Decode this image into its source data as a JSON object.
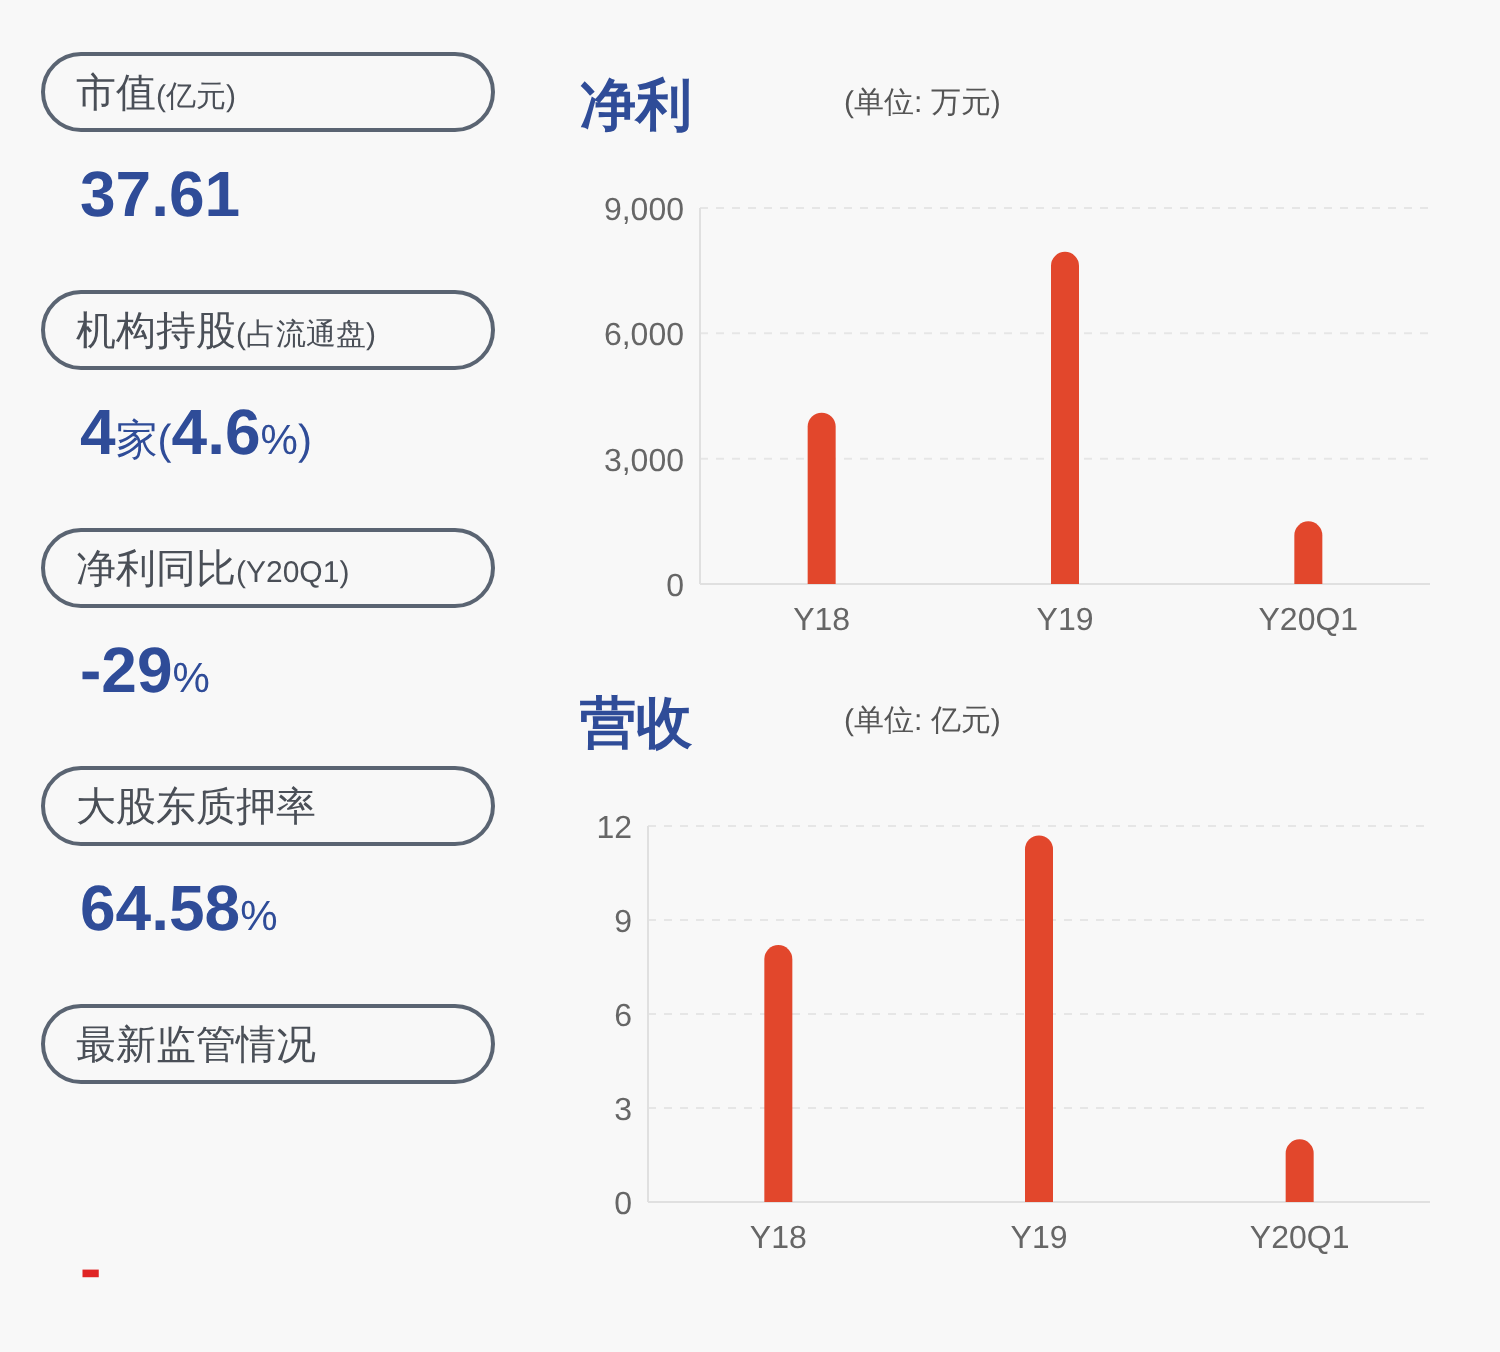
{
  "chart_data": [
    {
      "type": "other",
      "annotations": [
        "市值(亿元)",
        "37.61",
        "机构持股(占流通盘)",
        "4家(4.6%)",
        "净利同比(Y20Q1)",
        "-29%",
        "大股东质押率",
        "64.58%",
        "最新监管情况",
        "-"
      ],
      "colors": [
        "#2f4c98",
        "#2f4c98",
        "#2f4c98",
        "#2f4c98",
        "#e02424"
      ]
    },
    {
      "type": "bar",
      "title": "净利",
      "subtitle": "(单位: 万元)",
      "categories": [
        "Y18",
        "Y19",
        "Y20Q1"
      ],
      "values": [
        4100,
        7950,
        1500
      ],
      "color": "#e2472c",
      "ylim": [
        0,
        9000
      ],
      "yticks": [
        0,
        {
          "value": 3000,
          "label": "3,000"
        },
        {
          "value": 6000,
          "label": "6,000"
        },
        {
          "value": 9000,
          "label": "9,000"
        }
      ],
      "grid": "y"
    },
    {
      "type": "bar",
      "title": "营收",
      "subtitle": "(单位: 亿元)",
      "categories": [
        "Y18",
        "Y19",
        "Y20Q1"
      ],
      "values": [
        8.2,
        11.7,
        2.0
      ],
      "color": "#e2472c",
      "ylim": [
        0,
        12
      ],
      "yticks": [
        0,
        3,
        6,
        9,
        12
      ],
      "grid": "y"
    }
  ]
}
